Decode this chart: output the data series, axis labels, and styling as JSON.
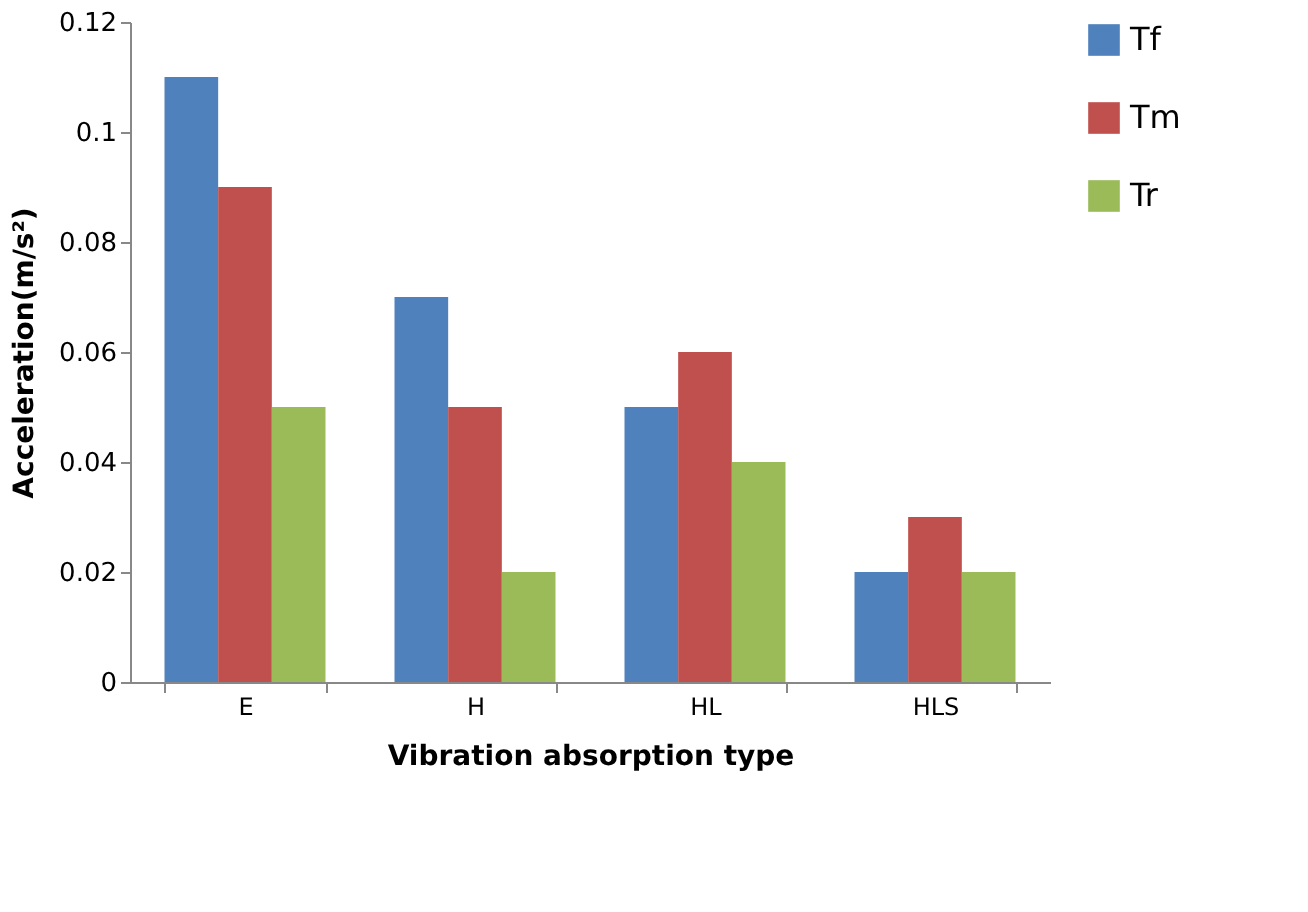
{
  "chart_data": {
    "type": "bar",
    "xlabel": "Vibration absorption type",
    "ylabel": "Acceleration(m/s²)",
    "categories": [
      "E",
      "H",
      "HL",
      "HLS"
    ],
    "series": [
      {
        "name": "Tf",
        "color": "#4f81bd",
        "values": [
          0.11,
          0.07,
          0.05,
          0.02
        ]
      },
      {
        "name": "Tm",
        "color": "#c0504d",
        "values": [
          0.09,
          0.05,
          0.06,
          0.03
        ]
      },
      {
        "name": "Tr",
        "color": "#9bbb59",
        "values": [
          0.05,
          0.02,
          0.04,
          0.02
        ]
      }
    ],
    "ylim": [
      0,
      0.12
    ],
    "yticks": [
      0,
      0.02,
      0.04,
      0.06,
      0.08,
      0.1,
      0.12
    ],
    "grid": false,
    "legend": "right"
  }
}
